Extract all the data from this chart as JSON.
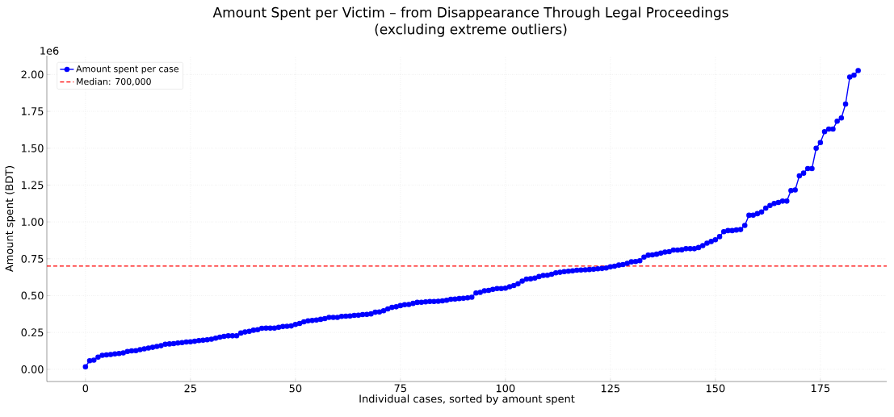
{
  "chart_data": {
    "type": "line",
    "title": "Amount Spent per Victim – from Disappearance Through Legal Proceedings",
    "subtitle": "(excluding extreme outliers)",
    "xlabel": "Individual cases, sorted by amount spent",
    "ylabel": "Amount spent (BDT)",
    "annotations": [
      "1e6"
    ],
    "x": [
      0,
      1,
      2,
      3,
      4,
      5,
      6,
      7,
      8,
      9,
      10,
      11,
      12,
      13,
      14,
      15,
      16,
      17,
      18,
      19,
      20,
      21,
      22,
      23,
      24,
      25,
      26,
      27,
      28,
      29,
      30,
      31,
      32,
      33,
      34,
      35,
      36,
      37,
      38,
      39,
      40,
      41,
      42,
      43,
      44,
      45,
      46,
      47,
      48,
      49,
      50,
      51,
      52,
      53,
      54,
      55,
      56,
      57,
      58,
      59,
      60,
      61,
      62,
      63,
      64,
      65,
      66,
      67,
      68,
      69,
      70,
      71,
      72,
      73,
      74,
      75,
      76,
      77,
      78,
      79,
      80,
      81,
      82,
      83,
      84,
      85,
      86,
      87,
      88,
      89,
      90,
      91,
      92,
      93,
      94,
      95,
      96,
      97,
      98,
      99,
      100,
      101,
      102,
      103,
      104,
      105,
      106,
      107,
      108,
      109,
      110,
      111,
      112,
      113,
      114,
      115,
      116,
      117,
      118,
      119,
      120,
      121,
      122,
      123,
      124,
      125,
      126,
      127,
      128,
      129,
      130,
      131,
      132,
      133,
      134,
      135,
      136,
      137,
      138,
      139,
      140,
      141,
      142,
      143,
      144,
      145,
      146,
      147,
      148,
      149,
      150,
      151,
      152,
      153,
      154,
      155,
      156,
      157,
      158,
      159,
      160,
      161,
      162,
      163,
      164,
      165,
      166,
      167,
      168,
      169,
      170,
      171,
      172,
      173,
      174,
      175,
      176,
      177,
      178,
      179,
      180,
      181,
      182,
      183,
      184
    ],
    "series": [
      {
        "name": "Amount spent per case",
        "color": "#0000ff",
        "values": [
          0.017,
          0.058,
          0.062,
          0.083,
          0.095,
          0.098,
          0.1,
          0.104,
          0.107,
          0.111,
          0.121,
          0.125,
          0.126,
          0.133,
          0.139,
          0.144,
          0.149,
          0.155,
          0.16,
          0.17,
          0.172,
          0.174,
          0.178,
          0.181,
          0.185,
          0.187,
          0.19,
          0.195,
          0.197,
          0.2,
          0.204,
          0.211,
          0.218,
          0.223,
          0.227,
          0.227,
          0.228,
          0.246,
          0.253,
          0.258,
          0.265,
          0.269,
          0.278,
          0.279,
          0.279,
          0.28,
          0.285,
          0.29,
          0.292,
          0.294,
          0.304,
          0.311,
          0.322,
          0.329,
          0.331,
          0.334,
          0.339,
          0.344,
          0.352,
          0.352,
          0.352,
          0.359,
          0.36,
          0.362,
          0.366,
          0.367,
          0.371,
          0.373,
          0.376,
          0.387,
          0.389,
          0.397,
          0.41,
          0.42,
          0.424,
          0.432,
          0.438,
          0.44,
          0.447,
          0.454,
          0.455,
          0.457,
          0.46,
          0.46,
          0.462,
          0.464,
          0.468,
          0.475,
          0.477,
          0.48,
          0.482,
          0.485,
          0.489,
          0.518,
          0.522,
          0.533,
          0.535,
          0.542,
          0.548,
          0.548,
          0.55,
          0.56,
          0.568,
          0.58,
          0.598,
          0.612,
          0.614,
          0.619,
          0.629,
          0.637,
          0.638,
          0.645,
          0.654,
          0.658,
          0.663,
          0.665,
          0.668,
          0.672,
          0.674,
          0.675,
          0.677,
          0.679,
          0.682,
          0.684,
          0.687,
          0.695,
          0.7,
          0.707,
          0.711,
          0.719,
          0.729,
          0.731,
          0.737,
          0.761,
          0.774,
          0.776,
          0.781,
          0.788,
          0.795,
          0.798,
          0.809,
          0.809,
          0.811,
          0.818,
          0.818,
          0.818,
          0.826,
          0.839,
          0.856,
          0.867,
          0.879,
          0.9,
          0.934,
          0.941,
          0.941,
          0.945,
          0.948,
          0.976,
          1.045,
          1.046,
          1.056,
          1.067,
          1.094,
          1.111,
          1.125,
          1.132,
          1.141,
          1.141,
          1.213,
          1.217,
          1.313,
          1.331,
          1.362,
          1.362,
          1.5,
          1.538,
          1.612,
          1.63,
          1.63,
          1.683,
          1.705,
          1.8,
          1.983,
          1.995,
          2.027
        ]
      }
    ],
    "xlim": [
      -9.2,
      190.8
    ],
    "ylim": [
      -0.083,
      2.128
    ],
    "xticks": [
      0,
      25,
      50,
      75,
      100,
      125,
      150,
      175
    ],
    "yticks": [
      {
        "value": 0,
        "label": "0.00"
      },
      0.25,
      {
        "value": 0.5,
        "label": "0.50"
      },
      0.75,
      {
        "value": 1,
        "label": "1.00"
      },
      1.25,
      {
        "value": 1.5,
        "label": "1.50"
      },
      1.75,
      {
        "value": 2,
        "label": "2.00"
      }
    ],
    "ref_lines": [
      {
        "axis": "y",
        "value": 0.7,
        "label": "Median: 700,000",
        "color": "#ff0000",
        "line_style": "dashed"
      }
    ],
    "grid": true,
    "legend": "top left",
    "marker": "circle",
    "line_style": "solid"
  }
}
